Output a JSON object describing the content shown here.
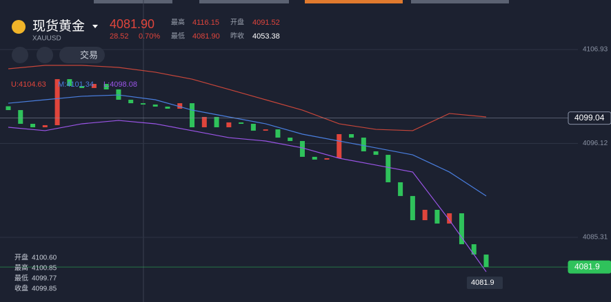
{
  "header": {
    "name": "现货黄金",
    "symbol": "XAUUSD",
    "price": "4081.90",
    "change": "28.52",
    "change_pct": "0.70%",
    "stats": [
      [
        "最高",
        "4116.15"
      ],
      [
        "开盘",
        "4091.52"
      ],
      [
        "最低",
        "4081.90"
      ],
      [
        "昨收",
        "4053.38"
      ]
    ],
    "trade_button": "交易"
  },
  "legend": [
    "U:4104.63",
    "M:4101.34",
    "L:4098.08"
  ],
  "ohlc_box": [
    [
      "开盘",
      "4100.60"
    ],
    [
      "最高",
      "4100.85"
    ],
    [
      "最低",
      "4099.77"
    ],
    [
      "收盘",
      "4099.85"
    ]
  ],
  "chart_data": {
    "type": "candlestick",
    "ylim": [
      4077.87,
      4112.63
    ],
    "yticks": [
      4106.93,
      4096.12,
      4085.31
    ],
    "up_color": "#e0453c",
    "down_color": "#2fc25b",
    "open": [
      4100.4,
      4099.96,
      4098.38,
      4097.98,
      4098.22,
      4103.52,
      4102.73,
      4102.5,
      4102.97,
      4102.34,
      4101.15,
      4100.75,
      4100.6,
      4100.36,
      4100.12,
      4100.75,
      4097.98,
      4099.17,
      4097.98,
      4098.54,
      4098.38,
      4097.59,
      4097.74,
      4096.79,
      4096.4,
      4094.58,
      4094.26,
      4094.42,
      4097.19,
      4096.79,
      4095.21,
      4094.81,
      4091.65,
      4090.07,
      4087.29,
      4088.48,
      4086.9,
      4088.08,
      4084.52,
      4083.33
    ],
    "close": [
      4099.96,
      4098.38,
      4097.98,
      4098.22,
      4103.52,
      4102.73,
      4102.5,
      4102.97,
      4102.34,
      4101.15,
      4100.75,
      4100.6,
      4100.36,
      4100.12,
      4100.75,
      4097.98,
      4099.17,
      4097.98,
      4098.54,
      4098.38,
      4097.59,
      4097.74,
      4096.79,
      4096.4,
      4094.58,
      4094.26,
      4094.42,
      4097.19,
      4096.79,
      4095.21,
      4094.81,
      4091.65,
      4090.07,
      4087.29,
      4088.48,
      4086.9,
      4088.08,
      4084.52,
      4083.33,
      4081.9
    ],
    "band_x": [
      0,
      3,
      6,
      9,
      12,
      15,
      18,
      21,
      24,
      27,
      30,
      33,
      36,
      39
    ],
    "series": [
      {
        "color": "#c8463a",
        "values": [
          4104.71,
          4105.11,
          4105.11,
          4104.87,
          4104.32,
          4103.52,
          4102.34,
          4101.15,
          4099.96,
          4098.38,
          4097.74,
          4097.59,
          4099.57,
          4099.17
        ]
      },
      {
        "color": "#4a7fe0",
        "values": [
          4100.75,
          4101.15,
          4101.55,
          4101.7,
          4101.15,
          4099.96,
          4099.17,
          4098.38,
          4097.19,
          4096.4,
          4095.61,
          4094.81,
          4092.83,
          4090.07
        ]
      },
      {
        "color": "#9b55e8",
        "values": [
          4097.98,
          4097.59,
          4098.38,
          4098.77,
          4098.38,
          4097.59,
          4096.79,
          4096.4,
          4095.61,
          4094.42,
          4093.63,
          4092.83,
          4087.29,
          4081.35
        ]
      }
    ],
    "price_lines": [
      {
        "value": 4099.04,
        "color": "#8a93a6"
      },
      {
        "value": 4081.9,
        "color": "#2fc25b"
      }
    ],
    "last_label": "4081.9"
  }
}
